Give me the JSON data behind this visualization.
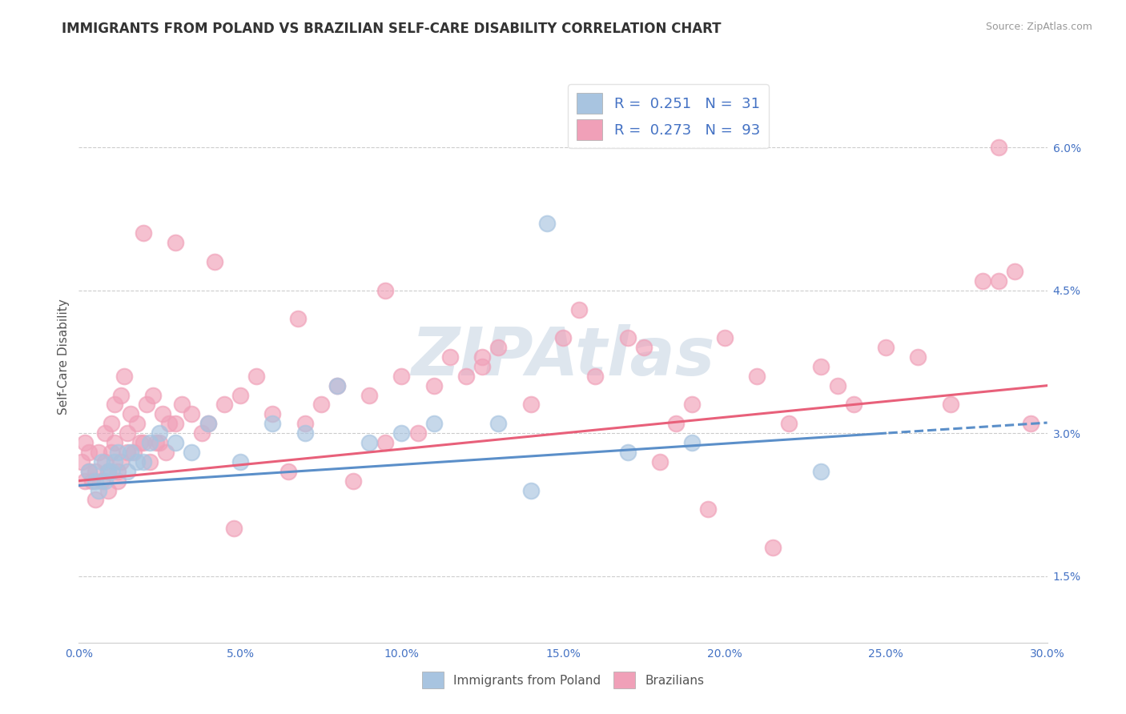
{
  "title": "IMMIGRANTS FROM POLAND VS BRAZILIAN SELF-CARE DISABILITY CORRELATION CHART",
  "source": "Source: ZipAtlas.com",
  "ylabel": "Self-Care Disability",
  "xlim": [
    0.0,
    30.0
  ],
  "ylim": [
    0.8,
    6.8
  ],
  "yticks_right": [
    1.5,
    3.0,
    4.5,
    6.0
  ],
  "blue_color": "#a8c4e0",
  "pink_color": "#f0a0b8",
  "blue_line_color": "#5b8fc9",
  "pink_line_color": "#e8607a",
  "R_blue": 0.251,
  "N_blue": 31,
  "R_pink": 0.273,
  "N_pink": 93,
  "legend_label_blue": "Immigrants from Poland",
  "legend_label_pink": "Brazilians",
  "watermark": "ZIPAtlas",
  "blue_scatter_x": [
    0.3,
    0.5,
    0.6,
    0.7,
    0.8,
    0.9,
    1.0,
    1.1,
    1.2,
    1.5,
    1.6,
    1.8,
    2.0,
    2.2,
    2.5,
    3.0,
    3.5,
    4.0,
    5.0,
    6.0,
    7.0,
    8.0,
    9.0,
    10.0,
    11.0,
    13.0,
    14.0,
    17.0,
    19.0,
    23.0,
    14.5
  ],
  "blue_scatter_y": [
    2.6,
    2.5,
    2.4,
    2.7,
    2.5,
    2.6,
    2.6,
    2.7,
    2.8,
    2.6,
    2.8,
    2.7,
    2.7,
    2.9,
    3.0,
    2.9,
    2.8,
    3.1,
    2.7,
    3.1,
    3.0,
    3.5,
    2.9,
    3.0,
    3.1,
    3.1,
    2.4,
    2.8,
    2.9,
    2.6,
    5.2
  ],
  "pink_scatter_x": [
    0.1,
    0.2,
    0.2,
    0.3,
    0.3,
    0.4,
    0.5,
    0.5,
    0.6,
    0.7,
    0.8,
    0.8,
    0.9,
    0.9,
    1.0,
    1.0,
    1.1,
    1.1,
    1.2,
    1.2,
    1.3,
    1.3,
    1.4,
    1.5,
    1.5,
    1.6,
    1.7,
    1.8,
    1.9,
    2.0,
    2.1,
    2.2,
    2.3,
    2.4,
    2.5,
    2.6,
    2.7,
    2.8,
    3.0,
    3.2,
    3.5,
    3.8,
    4.0,
    4.5,
    4.8,
    5.0,
    5.5,
    6.0,
    6.5,
    7.0,
    7.5,
    8.0,
    8.5,
    9.0,
    9.5,
    10.0,
    10.5,
    11.0,
    11.5,
    12.0,
    12.5,
    13.0,
    14.0,
    15.0,
    16.0,
    17.0,
    18.0,
    18.5,
    19.0,
    20.0,
    21.0,
    22.0,
    23.0,
    24.0,
    25.0,
    26.0,
    27.0,
    28.0,
    28.5,
    29.0,
    29.5,
    2.0,
    3.0,
    4.2,
    6.8,
    9.5,
    12.5,
    15.5,
    17.5,
    19.5,
    21.5,
    23.5,
    28.5
  ],
  "pink_scatter_y": [
    2.7,
    2.5,
    2.9,
    2.6,
    2.8,
    2.5,
    2.6,
    2.3,
    2.8,
    2.5,
    2.7,
    3.0,
    2.6,
    2.4,
    2.8,
    3.1,
    2.9,
    3.3,
    2.6,
    2.5,
    2.7,
    3.4,
    3.6,
    3.0,
    2.8,
    3.2,
    2.8,
    3.1,
    2.9,
    2.9,
    3.3,
    2.7,
    3.4,
    2.9,
    2.9,
    3.2,
    2.8,
    3.1,
    3.1,
    3.3,
    3.2,
    3.0,
    3.1,
    3.3,
    2.0,
    3.4,
    3.6,
    3.2,
    2.6,
    3.1,
    3.3,
    3.5,
    2.5,
    3.4,
    2.9,
    3.6,
    3.0,
    3.5,
    3.8,
    3.6,
    3.7,
    3.9,
    3.3,
    4.0,
    3.6,
    4.0,
    2.7,
    3.1,
    3.3,
    4.0,
    3.6,
    3.1,
    3.7,
    3.3,
    3.9,
    3.8,
    3.3,
    4.6,
    4.6,
    4.7,
    3.1,
    5.1,
    5.0,
    4.8,
    4.2,
    4.5,
    3.8,
    4.3,
    3.9,
    2.2,
    1.8,
    3.5,
    6.0
  ]
}
